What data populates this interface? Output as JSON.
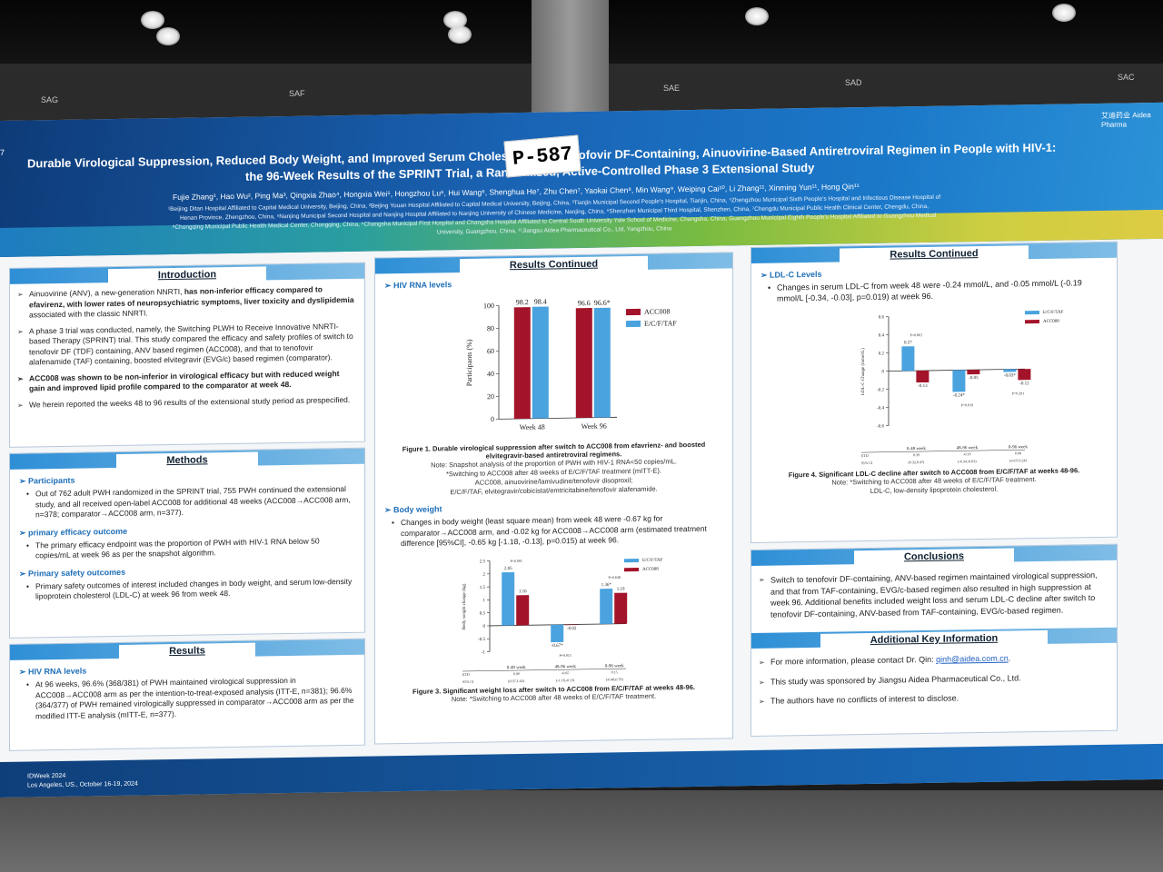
{
  "scene": {
    "booth_labels": [
      "SAG",
      "SAF",
      "SAE",
      "SAD",
      "SAC"
    ]
  },
  "poster": {
    "poster_id": "P-587",
    "edge_number": "7",
    "logo_text": "艾迪药业 Aidea Pharma",
    "title_line1": "Durable Virological Suppression, Reduced Body Weight, and Improved Serum Cholesterol a… Tenofovir DF-Containing, Ainuovirine-Based Antiretroviral Regimen in People with HIV-1:",
    "title_line2": "the 96-Week Results of the SPRINT Trial, a Randomized, Active-Controlled Phase 3 Extensional Study",
    "authors": "Fujie Zhang¹, Hao Wu², Ping Ma³, Qingxia Zhao⁴, Hongxia Wei⁵, Hongzhou Lu⁶, Hui Wang⁶, Shenghua He⁷, Zhu Chen⁷, Yaokai Chen⁸, Min Wang⁹, Weiping Cai¹⁰, Li Zhang¹¹, Xinming Yun¹¹, Hong Qin¹¹",
    "affiliations": "¹Beijing Ditan Hospital Affiliated to Capital Medical University, Beijing, China, ²Beijing Youan Hospital Affiliated to Capital Medical University, Beijing, China, ³Tianjin Municipal Second People's Hospital, Tianjin, China, ⁴Zhengzhou Municipal Sixth People's Hospital and Infectious Disease Hospital of Henan Province, Zhengzhou, China, ⁵Nanjing Municipal Second Hospital and Nanjing Hospital Affiliated to Nanjing University of Chinese Medicine, Nanjing, China, ⁶Shenzhen Municipal Third Hospital, Shenzhen, China, ⁷Chengdu Municipal Public Health Clinical Center, Chengdu, China, ⁸Chongqing Municipal Public Health Medical Center, Chongqing, China, ⁹Changsha Municipal First Hospital and Changsha Hospital Affiliated to Central South University Yale School of Medicine, Changsha, China, Guangzhou Municipal Eighth People's Hospital Affiliated to Guangzhou Medical University, Guangzhou, China, ¹¹Jiangsu Aidea Pharmaceutical Co., Ltd, Yangzhou, China",
    "footer_conf": "IDWeek 2024",
    "footer_place": "Los Angeles, US., October 16-19, 2024"
  },
  "introduction": {
    "heading": "Introduction",
    "b1_pre": "Ainuovirine (ANV), a new-generation NNRTI, ",
    "b1_bold": "has non-inferior efficacy compared to efavirenz, with lower rates of neuropsychiatric symptoms, liver toxicity and dyslipidemia",
    "b1_post": " associated with the classic NNRTI.",
    "b2": "A phase 3 trial was conducted, namely, the Switching PLWH to Receive Innovative NNRTI-based Therapy (SPRINT) trial. This study compared the efficacy and safety profiles of switch to tenofovir DF (TDF) containing, ANV based regimen (ACC008), and that to tenofovir alafenamide (TAF) containing, boosted elvitegravir (EVG/c) based regimen (comparator).",
    "b3": "ACC008 was shown to be non-inferior in virological efficacy but with reduced weight gain and improved lipid profile compared to the comparator at week 48.",
    "b4": "We herein reported the weeks 48 to 96 results of the extensional study period as prespecified."
  },
  "methods": {
    "heading": "Methods",
    "participants_h": "Participants",
    "participants": "Out of 762 adult PWH randomized in the SPRINT trial, 755 PWH continued the extensional study, and all received open-label ACC008 for additional 48 weeks (ACC008→ACC008 arm, n=378; comparator→ACC008 arm, n=377).",
    "efficacy_h": "primary efficacy outcome",
    "efficacy": "The primary efficacy endpoint was the proportion of PWH with HIV-1 RNA below 50 copies/mL at week 96 as per the snapshot algorithm.",
    "safety_h": "Primary safety outcomes",
    "safety": "Primary safety outcomes of interest included changes in body weight, and serum low-density lipoprotein cholesterol (LDL-C) at week 96 from week 48."
  },
  "results": {
    "heading": "Results",
    "hiv_h": "HIV RNA levels",
    "hiv": "At 96 weeks, 96.6% (368/381) of PWH maintained virological suppression in ACC008→ACC008 arm as per the intention-to-treat-exposed analysis (ITT-E, n=381); 96.6% (364/377) of PWH remained virologically suppressed in comparator→ACC008 arm as per the modified ITT-E analysis (mITT-E, n=377)."
  },
  "results_continued": {
    "heading": "Results Continued",
    "hiv_h": "HIV RNA levels",
    "fig1_caption": "Figure 1. Durable virological suppression after switch to ACC008 from efavrienz- and boosted elvitegravir-based antiretroviral regimens.",
    "fig1_note1": "Note: Snapshot analysis of the proportion of PWH with HIV-1 RNA<50 copies/mL.",
    "fig1_note2": "*Switching to ACC008 after 48 weeks of E/C/F/TAF treatment (mITT-E).",
    "fig1_note3": "ACC008, ainuovirine/lamivudine/tenofovir disoproxil;",
    "fig1_note4": "E/C/F/TAF, elvitegravir/cobicistat/emtricitabine/tenofovir alafenamide.",
    "bw_h": "Body weight",
    "bw": "Changes in body weight (least square mean) from week 48 were -0.67 kg for comparator→ACC008 arm, and -0.02 kg for ACC008→ACC008 arm (estimated treatment difference [95%CI], -0.65 kg [-1.18, -0.13], p=0.015) at week 96.",
    "fig3_caption": "Figure 3. Significant weight loss after switch to ACC008 from E/C/F/TAF at weeks 48-96.",
    "fig3_note": "Note: *Switching to ACC008 after 48 weeks of E/C/F/TAF treatment."
  },
  "results_continued2": {
    "heading": "Results Continued",
    "ldl_h": "LDL-C Levels",
    "ldl": "Changes in serum LDL-C from week 48 were -0.24 mmol/L, and -0.05 mmol/L (-0.19 mmol/L [-0.34, -0.03], p=0.019) at week 96.",
    "fig4_caption": "Figure 4. Significant LDL-C decline after switch to ACC008 from E/C/F/TAF at weeks 48-96.",
    "fig4_note1": "Note: *Switching to ACC008 after 48 weeks of E/C/F/TAF treatment.",
    "fig4_note2": "LDL-C, low-density lipoprotein cholesterol."
  },
  "conclusions": {
    "heading": "Conclusions",
    "text": "Switch to tenofovir DF-containing, ANV-based regimen maintained virological suppression, and that from TAF-containing, EVG/c-based regimen also resulted in high suppression at week 96. Additional benefits included weight loss and serum LDL-C decline after switch to tenofovir DF-containing, ANV-based from TAF-containing, EVG/c-based regimen."
  },
  "additional": {
    "heading": "Additional Key Information",
    "contact_pre": "For more information, please contact Dr. Qin: ",
    "email": "qinh@aidea.com.cn",
    "contact_post": ".",
    "sponsor": "This study was sponsored by Jiangsu Aidea Pharmaceutical Co., Ltd.",
    "coi": "The authors have no conflicts of interest to disclose."
  },
  "chart_data": [
    {
      "id": "fig1",
      "type": "bar",
      "categories": [
        "Week 48",
        "Week 96"
      ],
      "series": [
        {
          "name": "ACC008",
          "values": [
            98.2,
            96.6
          ],
          "color": "#a3142a"
        },
        {
          "name": "E/C/F/TAF",
          "values": [
            98.4,
            96.6
          ],
          "color": "#4aa3df"
        }
      ],
      "data_labels": [
        "98.2",
        "98.4",
        "96.6",
        "96.6*"
      ],
      "ylabel": "Participants (%)",
      "yticks": [
        0,
        20,
        40,
        60,
        80,
        100
      ],
      "ylim": [
        0,
        100
      ]
    },
    {
      "id": "fig3",
      "type": "bar",
      "categories": [
        "0-48 week",
        "48-96 week",
        "0-96 week"
      ],
      "series": [
        {
          "name": "E/C/F/TAF",
          "values": [
            2.05,
            -0.67,
            1.36
          ],
          "color": "#4aa3df"
        },
        {
          "name": "ACC008",
          "values": [
            1.16,
            -0.02,
            1.19
          ],
          "color": "#a3142a"
        }
      ],
      "data_labels": [
        "2.05",
        "1.16",
        "-0.67*",
        "-0.02",
        "1.36*",
        "1.19"
      ],
      "pvalues": [
        "P<0.001",
        "P=0.015",
        "P=0.648"
      ],
      "ylabel": "Body weight change (kg)",
      "yticks": [
        -1.0,
        -0.5,
        0.0,
        0.5,
        1.0,
        1.5,
        2.0,
        2.5
      ],
      "ylim": [
        -1.0,
        2.5
      ],
      "table_rows": [
        [
          "ETD",
          "0.90",
          "-0.65",
          "0.15"
        ],
        [
          "95% CI",
          "(0.37,1.43)",
          "(-1.18,-0.13)",
          "(-0.48,0.79)"
        ]
      ]
    },
    {
      "id": "fig4",
      "type": "bar",
      "categories": [
        "0-48 week",
        "48-96 week",
        "0-96 week"
      ],
      "series": [
        {
          "name": "E/C/F/TAF",
          "values": [
            0.27,
            -0.24,
            -0.03
          ],
          "color": "#4aa3df"
        },
        {
          "name": "ACC008",
          "values": [
            -0.13,
            -0.05,
            -0.12
          ],
          "color": "#a3142a"
        }
      ],
      "data_labels": [
        "0.27",
        "-0.13",
        "-0.24*",
        "-0.05",
        "-0.03*",
        "-0.12"
      ],
      "pvalues": [
        "P<0.001",
        "P=0.019",
        "P=0.291"
      ],
      "ylabel": "LDL-C Change (mmol/L)",
      "yticks": [
        -0.6,
        -0.4,
        -0.2,
        0.0,
        0.2,
        0.4,
        0.6
      ],
      "ylim": [
        -0.6,
        0.6
      ],
      "table_rows": [
        [
          "ETD",
          "0.39",
          "-0.19",
          "0.08"
        ],
        [
          "95% CI",
          "(0.32,0.47)",
          "(-0.34,-0.03)",
          "(-0.07,0.24)"
        ]
      ]
    }
  ]
}
